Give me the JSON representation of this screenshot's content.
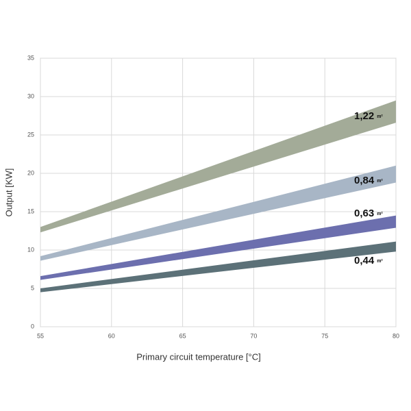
{
  "chart_data": {
    "type": "band",
    "x_label": "Primary circuit temperature [°C]",
    "y_label": "Output [KW]",
    "x": [
      55,
      80
    ],
    "xlim": [
      55,
      80
    ],
    "xticks": [
      55,
      60,
      65,
      70,
      75,
      80
    ],
    "ylim": [
      0,
      35
    ],
    "yticks": [
      0,
      5,
      10,
      15,
      20,
      25,
      30,
      35
    ],
    "grid": true,
    "area_unit": "m²",
    "series": [
      {
        "name": "1,22",
        "color": "#a3ab98",
        "lower": [
          12.3,
          26.6
        ],
        "upper": [
          13.0,
          29.5
        ]
      },
      {
        "name": "0,84",
        "color": "#a8b6c6",
        "lower": [
          8.6,
          18.8
        ],
        "upper": [
          9.2,
          21.0
        ]
      },
      {
        "name": "0,63",
        "color": "#6c6fae",
        "lower": [
          6.1,
          12.9
        ],
        "upper": [
          6.6,
          14.5
        ]
      },
      {
        "name": "0,44",
        "color": "#5c7178",
        "lower": [
          4.5,
          9.8
        ],
        "upper": [
          5.0,
          11.1
        ]
      }
    ]
  }
}
